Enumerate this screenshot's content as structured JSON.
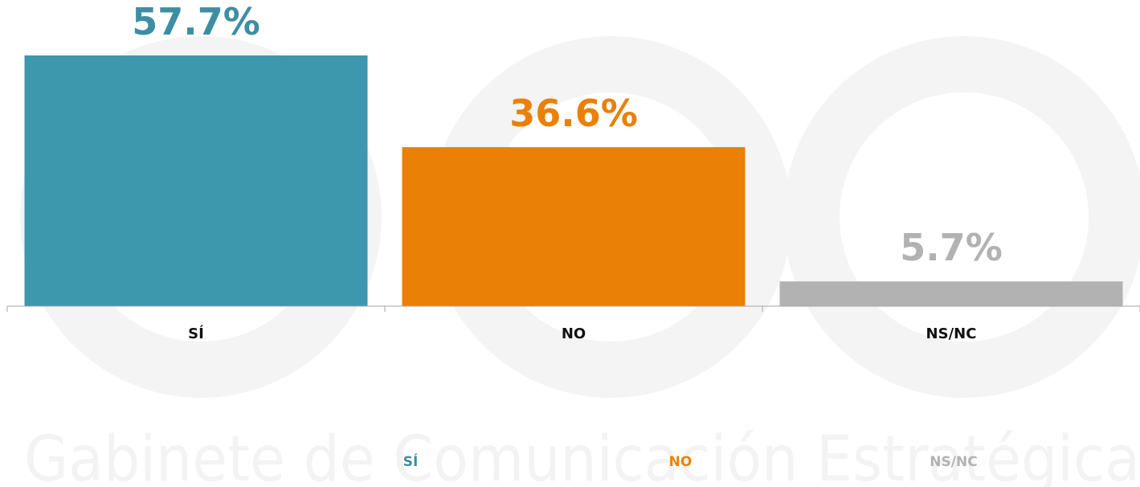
{
  "watermark": {
    "text": "Gabinete de Comunicación Estratégica"
  },
  "chart_data": {
    "type": "bar",
    "categories": [
      "SÍ",
      "NO",
      "NS/NC"
    ],
    "values": [
      57.7,
      36.6,
      5.7
    ],
    "value_labels": [
      "57.7%",
      "36.6%",
      "5.7%"
    ],
    "colors": [
      "#3d97ad",
      "#ea8006",
      "#b2b2b2"
    ],
    "label_colors": [
      "#3d8ea3",
      "#ea8006",
      "#b2b2b2"
    ],
    "ylim": [
      0,
      57.7
    ],
    "grid": false,
    "legend": {
      "position": "bottom",
      "entries": [
        "SÍ",
        "NO",
        "NS/NC"
      ]
    }
  }
}
